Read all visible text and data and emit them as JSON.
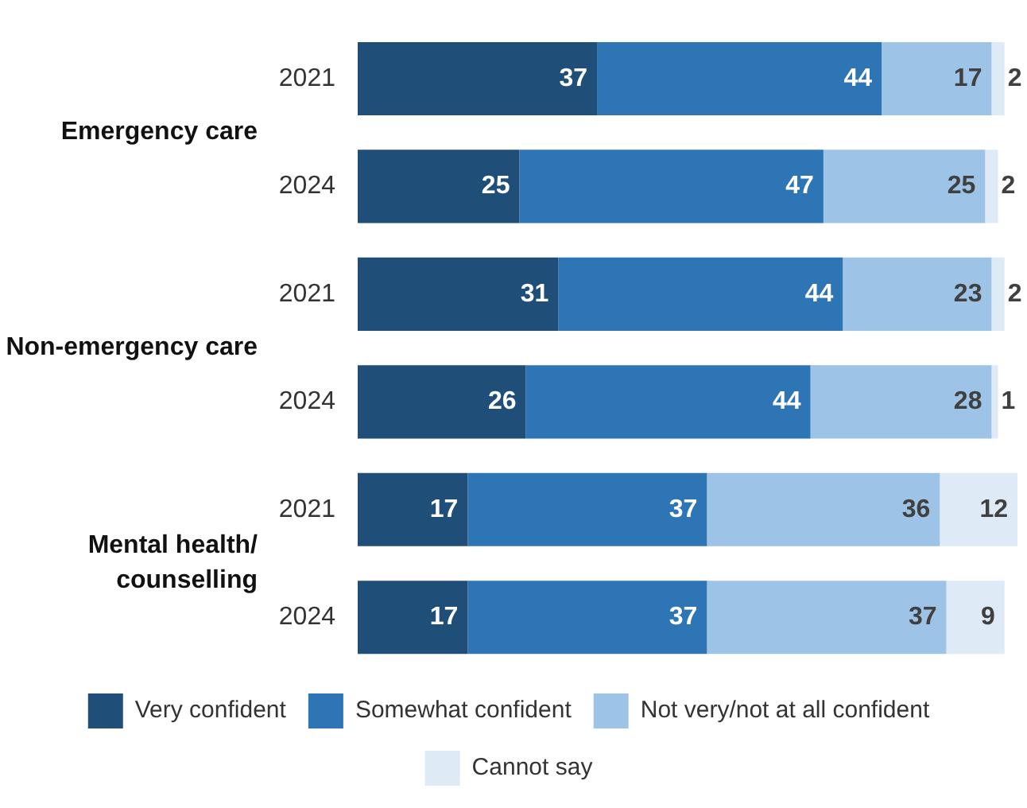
{
  "chart_data": {
    "type": "bar",
    "orientation": "horizontal",
    "stacked": true,
    "categories": [
      "2021",
      "2024",
      "2021",
      "2024",
      "2021",
      "2024"
    ],
    "annotations": [
      "Emergency care",
      "Non-emergency care",
      "Mental health/ counselling"
    ],
    "series": [
      {
        "name": "Very confident",
        "color": "#1f4e79",
        "values": [
          37,
          25,
          31,
          26,
          17,
          17
        ]
      },
      {
        "name": "Somewhat confident",
        "color": "#2e75b6",
        "values": [
          44,
          47,
          44,
          44,
          37,
          37
        ]
      },
      {
        "name": "Not very/not at all confident",
        "color": "#9dc3e6",
        "values": [
          17,
          25,
          23,
          28,
          36,
          37
        ]
      },
      {
        "name": "Cannot say",
        "color": "#deebf7",
        "values": [
          2,
          2,
          2,
          1,
          12,
          9
        ]
      }
    ],
    "xlim": [
      0,
      102
    ],
    "tick_labels": "y",
    "grid": false,
    "legend": "bottom",
    "data_labels": true
  }
}
